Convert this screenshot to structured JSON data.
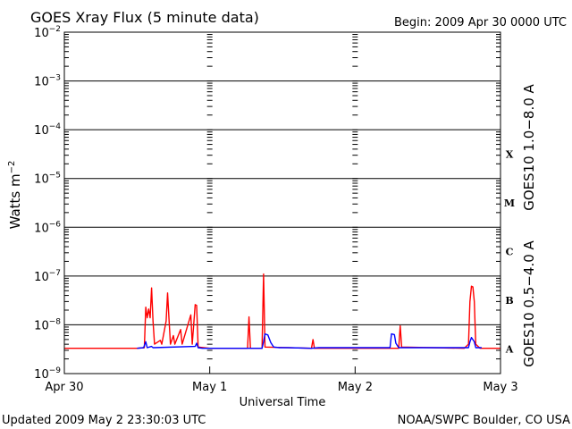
{
  "chart_data": {
    "type": "line",
    "title": "GOES Xray Flux (5 minute data)",
    "begin_label": "Begin:  2009 Apr 30 0000 UTC",
    "xlabel": "Universal Time",
    "ylabel_main": "Watts m",
    "ylabel_exp": "−2",
    "yscale": "log",
    "ylim": [
      1e-09,
      0.01
    ],
    "xlim_days": [
      0,
      3
    ],
    "x_tick_labels": [
      "Apr 30",
      "May 1",
      "May 2",
      "May 3"
    ],
    "y_tick_labels": [
      {
        "base": "10",
        "exp": "−2"
      },
      {
        "base": "10",
        "exp": "−3"
      },
      {
        "base": "10",
        "exp": "−4"
      },
      {
        "base": "10",
        "exp": "−5"
      },
      {
        "base": "10",
        "exp": "−6"
      },
      {
        "base": "10",
        "exp": "−7"
      },
      {
        "base": "10",
        "exp": "−8"
      },
      {
        "base": "10",
        "exp": "−9"
      }
    ],
    "flare_classes": [
      "X",
      "M",
      "C",
      "B",
      "A"
    ],
    "grid": true,
    "series": [
      {
        "name": "GOES10 1.0−8.0 A",
        "color": "#ff0000",
        "points": [
          [
            0.0,
            3.3e-09
          ],
          [
            0.5,
            3.3e-09
          ],
          [
            0.55,
            3.4e-09
          ],
          [
            0.56,
            2.3e-08
          ],
          [
            0.57,
            1.4e-08
          ],
          [
            0.58,
            2.1e-08
          ],
          [
            0.59,
            1.4e-08
          ],
          [
            0.6,
            5.7e-08
          ],
          [
            0.61,
            1.2e-08
          ],
          [
            0.62,
            4e-09
          ],
          [
            0.66,
            4.8e-09
          ],
          [
            0.67,
            4e-09
          ],
          [
            0.7,
            1.2e-08
          ],
          [
            0.71,
            4.5e-08
          ],
          [
            0.72,
            1.3e-08
          ],
          [
            0.73,
            4e-09
          ],
          [
            0.75,
            6e-09
          ],
          [
            0.76,
            4e-09
          ],
          [
            0.8,
            8e-09
          ],
          [
            0.81,
            4e-09
          ],
          [
            0.87,
            1.6e-08
          ],
          [
            0.88,
            4e-09
          ],
          [
            0.9,
            2.6e-08
          ],
          [
            0.91,
            2.5e-08
          ],
          [
            0.92,
            3.5e-09
          ],
          [
            1.0,
            3.3e-09
          ],
          [
            1.26,
            3.3e-09
          ],
          [
            1.27,
            1.45e-08
          ],
          [
            1.28,
            3.3e-09
          ],
          [
            1.36,
            3.3e-09
          ],
          [
            1.37,
            1.1e-07
          ],
          [
            1.38,
            3.5e-09
          ],
          [
            1.7,
            3.3e-09
          ],
          [
            1.71,
            5e-09
          ],
          [
            1.72,
            3.3e-09
          ],
          [
            2.3,
            3.3e-09
          ],
          [
            2.31,
            9.5e-09
          ],
          [
            2.32,
            3.5e-09
          ],
          [
            2.75,
            3.3e-09
          ],
          [
            2.78,
            4e-09
          ],
          [
            2.79,
            3e-08
          ],
          [
            2.8,
            6.2e-08
          ],
          [
            2.81,
            6e-08
          ],
          [
            2.82,
            3e-08
          ],
          [
            2.83,
            4e-09
          ],
          [
            2.86,
            3.3e-09
          ],
          [
            3.0,
            3.3e-09
          ]
        ]
      },
      {
        "name": "GOES10 0.5−4.0 A",
        "color": "#0000ff",
        "points": [
          [
            0.5,
            3.3e-09
          ],
          [
            0.545,
            3.4e-09
          ],
          [
            0.56,
            4.5e-09
          ],
          [
            0.57,
            3.4e-09
          ],
          [
            0.6,
            3.6e-09
          ],
          [
            0.61,
            3.4e-09
          ],
          [
            0.9,
            3.6e-09
          ],
          [
            0.91,
            4.2e-09
          ],
          [
            0.92,
            3.4e-09
          ],
          [
            0.95,
            3.3e-09
          ],
          [
            1.36,
            3.3e-09
          ],
          [
            1.37,
            4.5e-09
          ],
          [
            1.38,
            6.5e-09
          ],
          [
            1.4,
            6.2e-09
          ],
          [
            1.42,
            4.3e-09
          ],
          [
            1.44,
            3.5e-09
          ],
          [
            1.48,
            3.4e-09
          ],
          [
            1.54,
            3.4e-09
          ],
          [
            1.7,
            3.3e-09
          ],
          [
            1.75,
            3.4e-09
          ],
          [
            2.24,
            3.4e-09
          ],
          [
            2.25,
            6.5e-09
          ],
          [
            2.27,
            6.3e-09
          ],
          [
            2.28,
            4.2e-09
          ],
          [
            2.3,
            3.4e-09
          ],
          [
            2.37,
            3.4e-09
          ],
          [
            2.58,
            3.4e-09
          ],
          [
            2.78,
            3.4e-09
          ],
          [
            2.79,
            4.5e-09
          ],
          [
            2.8,
            5.5e-09
          ],
          [
            2.82,
            4.5e-09
          ],
          [
            2.83,
            3.4e-09
          ],
          [
            2.87,
            3.4e-09
          ]
        ]
      }
    ]
  },
  "footer": {
    "updated": "Updated 2009 May  2 23:30:03 UTC",
    "source": "NOAA/SWPC Boulder, CO USA"
  }
}
